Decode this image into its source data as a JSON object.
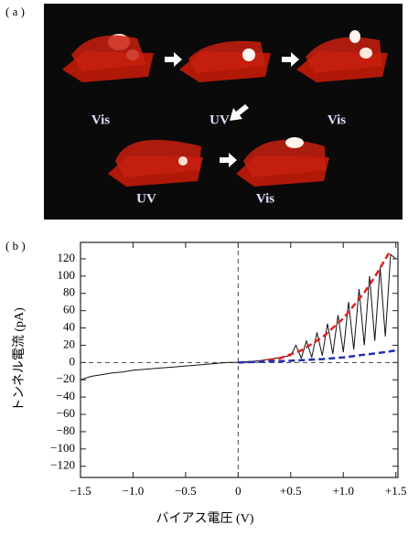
{
  "panel_a": {
    "label": "( a )",
    "captions": [
      "Vis",
      "UV",
      "Vis",
      "UV",
      "Vis"
    ]
  },
  "chart_data": {
    "type": "line",
    "panel_label": "( b )",
    "xlabel": "バイアス電圧 (V)",
    "ylabel": "トンネル電流 (pA)",
    "xlim": [
      -1.5,
      1.52
    ],
    "ylim": [
      -133,
      139
    ],
    "xticks": [
      {
        "value": -1.5,
        "label": "−1.5"
      },
      {
        "value": -1.0,
        "label": "−1.0"
      },
      {
        "value": -0.5,
        "label": "−0.5"
      },
      0,
      {
        "value": 0.5,
        "label": "+0.5"
      },
      {
        "value": 1.0,
        "label": "+1.0"
      },
      {
        "value": 1.5,
        "label": "+1.5"
      }
    ],
    "yticks": [
      {
        "value": -120,
        "label": "−120"
      },
      {
        "value": -100,
        "label": "−100"
      },
      {
        "value": -80,
        "label": "−80"
      },
      {
        "value": -60,
        "label": "−60"
      },
      {
        "value": -40,
        "label": "−40"
      },
      {
        "value": -20,
        "label": "−20"
      },
      0,
      20,
      40,
      60,
      80,
      100,
      120
    ],
    "reference_lines": {
      "x": 0,
      "y": 0
    },
    "series": [
      {
        "color": "#111111",
        "dash": false,
        "x": [
          -1.5,
          -1.4,
          -1.3,
          -1.2,
          -1.1,
          -1.0,
          -0.9,
          -0.8,
          -0.7,
          -0.6,
          -0.5,
          -0.4,
          -0.3,
          -0.2,
          -0.1,
          0,
          0.1,
          0.2,
          0.3,
          0.4,
          0.5,
          0.55,
          0.6,
          0.65,
          0.7,
          0.75,
          0.8,
          0.85,
          0.9,
          0.95,
          1.0,
          1.05,
          1.1,
          1.15,
          1.2,
          1.25,
          1.3,
          1.35,
          1.4,
          1.45,
          1.5
        ],
        "y": [
          -20,
          -16,
          -14,
          -12,
          -11,
          -9,
          -8,
          -7,
          -6,
          -5,
          -4,
          -3,
          -2,
          -1,
          0,
          0,
          1,
          2,
          4,
          6,
          8,
          20,
          5,
          25,
          6,
          35,
          8,
          45,
          10,
          55,
          12,
          70,
          15,
          85,
          20,
          100,
          25,
          110,
          30,
          125,
          120
        ]
      },
      {
        "color": "#e02020",
        "dash": true,
        "x": [
          0,
          0.2,
          0.4,
          0.6,
          0.8,
          1.0,
          1.2,
          1.3,
          1.45
        ],
        "y": [
          0,
          1,
          5,
          14,
          29,
          51,
          81,
          99,
          130
        ]
      },
      {
        "color": "#2030b0",
        "dash": true,
        "x": [
          0,
          0.5,
          0.8,
          1.0,
          1.2,
          1.4,
          1.5
        ],
        "y": [
          0,
          2,
          4,
          6,
          9,
          12,
          14
        ]
      }
    ]
  }
}
